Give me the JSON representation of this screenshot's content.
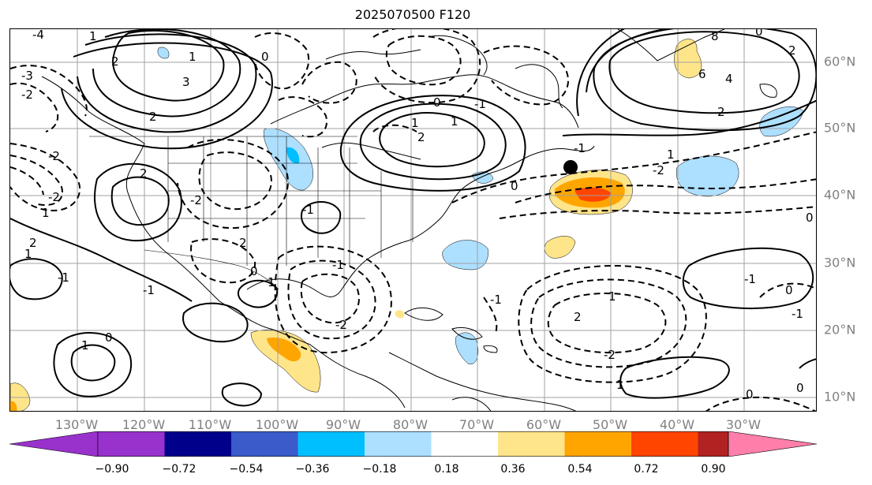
{
  "title": "2025070500 F120",
  "longitude_labels": [
    "130°W",
    "120°W",
    "110°W",
    "100°W",
    "90°W",
    "80°W",
    "70°W",
    "60°W",
    "50°W",
    "40°W",
    "30°W"
  ],
  "latitude_labels": [
    "60°N",
    "50°N",
    "40°N",
    "30°N",
    "20°N",
    "10°N"
  ],
  "colorbar": {
    "tick_labels": [
      "−0.90",
      "−0.72",
      "−0.54",
      "−0.36",
      "−0.18",
      "0.18",
      "0.36",
      "0.54",
      "0.72",
      "0.90"
    ],
    "colors": [
      "#9932CC",
      "#00008B",
      "#3A5BC9",
      "#00BFFF",
      "#ADDFFF",
      "#FFFFFF",
      "#FFE58A",
      "#FFA500",
      "#FF4500",
      "#B22222",
      "#FF7FAA"
    ]
  },
  "contour_labels": [
    "-4",
    "-3",
    "-2",
    "1",
    "2",
    "3",
    "-2",
    "1",
    "-2",
    "2",
    "1",
    "2",
    "-1",
    "0",
    "1",
    "-1",
    "0",
    "1",
    "-2",
    "2",
    "-1",
    "0",
    "2",
    "1",
    "1",
    "-1",
    "0",
    "1",
    "2",
    "2",
    "4",
    "6",
    "8",
    "2",
    "-1",
    "0",
    "1",
    "0",
    "-2",
    "-1",
    "1",
    "2",
    "-2",
    "-1",
    "0",
    "1",
    "0",
    "-2",
    "-1",
    "0",
    "-1",
    "0"
  ],
  "storm_marker": "black-dot",
  "colors": {
    "land_outline": "#000000",
    "grid": "#a0a0a0",
    "contour": "#000000"
  }
}
